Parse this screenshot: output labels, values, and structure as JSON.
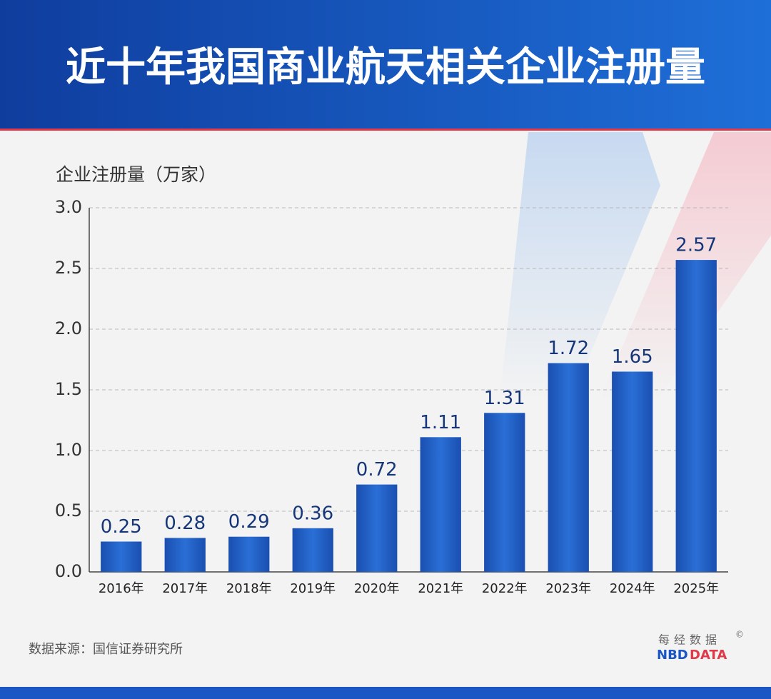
{
  "chart_data": {
    "type": "bar",
    "title": "近十年我国商业航天相关企业注册量",
    "y_label": "企业注册量（万家）",
    "categories": [
      "2016年",
      "2017年",
      "2018年",
      "2019年",
      "2020年",
      "2021年",
      "2022年",
      "2023年",
      "2024年",
      "2025年"
    ],
    "values": [
      0.25,
      0.28,
      0.29,
      0.36,
      0.72,
      1.11,
      1.31,
      1.72,
      1.65,
      2.57
    ],
    "color": "#1d5cc4",
    "ylim": [
      0,
      3
    ],
    "yticks": [
      {
        "value": 0,
        "label": "0.0"
      },
      0.5,
      {
        "value": 1,
        "label": "1.0"
      },
      1.5,
      {
        "value": 2,
        "label": "2.0"
      },
      2.5,
      {
        "value": 3,
        "label": "3.0"
      }
    ],
    "grid": true,
    "source": "数据来源：国信证券研究所",
    "brand_cn": "每经数据",
    "brand_mark": "©",
    "brand_en_1": "NBD",
    "brand_en_2": "DATA"
  }
}
